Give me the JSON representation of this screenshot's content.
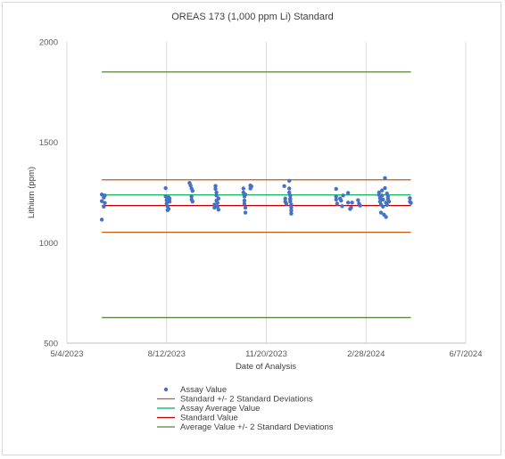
{
  "chart_data": {
    "type": "scatter",
    "title": "OREAS 173 (1,000 ppm Li) Standard",
    "xlabel": "Date of Analysis",
    "ylabel": "Lithium (ppm)",
    "ylim": [
      500,
      2000
    ],
    "yticks": [
      500,
      1000,
      1500,
      2000
    ],
    "xlim": [
      "2023-05-04",
      "2024-06-07"
    ],
    "xticks": [
      {
        "date": "2023-05-04",
        "label": "5/4/2023"
      },
      {
        "date": "2023-08-12",
        "label": "8/12/2023"
      },
      {
        "date": "2023-11-20",
        "label": "11/20/2023"
      },
      {
        "date": "2024-02-28",
        "label": "2/28/2024"
      },
      {
        "date": "2024-06-07",
        "label": "6/7/2024"
      }
    ],
    "grid": {
      "vertical": true,
      "horizontal": false
    },
    "legend_position": "bottom",
    "reference_lines": [
      {
        "name": "Standard +/- 2 Standard Deviations",
        "color": "#c55a11",
        "values": [
          1313,
          1052
        ],
        "x_range": [
          "2023-06-08",
          "2024-04-13"
        ]
      },
      {
        "name": "Assay Average Value",
        "color": "#00b050",
        "values": [
          1238
        ],
        "x_range": [
          "2023-06-08",
          "2024-04-13"
        ]
      },
      {
        "name": "Standard Value",
        "color": "#c00000",
        "values": [
          1185
        ],
        "x_range": [
          "2023-06-08",
          "2024-04-13"
        ]
      },
      {
        "name": "Average Value +/- 2 Standard Deviations",
        "color": "#548235",
        "values": [
          1850,
          627
        ],
        "x_range": [
          "2023-06-08",
          "2024-04-13"
        ]
      }
    ],
    "series": [
      {
        "name": "Assay Value",
        "color": "#4472c4",
        "points": [
          {
            "x": "2023-06-08",
            "y": 1115
          },
          {
            "x": "2023-06-08",
            "y": 1207
          },
          {
            "x": "2023-06-08",
            "y": 1240
          },
          {
            "x": "2023-06-10",
            "y": 1180
          },
          {
            "x": "2023-06-10",
            "y": 1225
          },
          {
            "x": "2023-06-11",
            "y": 1235
          },
          {
            "x": "2023-06-11",
            "y": 1198
          },
          {
            "x": "2023-08-11",
            "y": 1272
          },
          {
            "x": "2023-08-11",
            "y": 1230
          },
          {
            "x": "2023-08-12",
            "y": 1212
          },
          {
            "x": "2023-08-12",
            "y": 1195
          },
          {
            "x": "2023-08-13",
            "y": 1180
          },
          {
            "x": "2023-08-13",
            "y": 1162
          },
          {
            "x": "2023-08-14",
            "y": 1168
          },
          {
            "x": "2023-08-14",
            "y": 1225
          },
          {
            "x": "2023-08-15",
            "y": 1220
          },
          {
            "x": "2023-08-15",
            "y": 1205
          },
          {
            "x": "2023-09-04",
            "y": 1298
          },
          {
            "x": "2023-09-05",
            "y": 1285
          },
          {
            "x": "2023-09-06",
            "y": 1270
          },
          {
            "x": "2023-09-06",
            "y": 1230
          },
          {
            "x": "2023-09-06",
            "y": 1215
          },
          {
            "x": "2023-09-07",
            "y": 1205
          },
          {
            "x": "2023-09-07",
            "y": 1258
          },
          {
            "x": "2023-09-30",
            "y": 1283
          },
          {
            "x": "2023-09-30",
            "y": 1268
          },
          {
            "x": "2023-10-01",
            "y": 1250
          },
          {
            "x": "2023-10-01",
            "y": 1235
          },
          {
            "x": "2023-10-01",
            "y": 1210
          },
          {
            "x": "2023-10-02",
            "y": 1198
          },
          {
            "x": "2023-10-02",
            "y": 1180
          },
          {
            "x": "2023-10-03",
            "y": 1165
          },
          {
            "x": "2023-10-03",
            "y": 1220
          },
          {
            "x": "2023-09-29",
            "y": 1190
          },
          {
            "x": "2023-09-29",
            "y": 1175
          },
          {
            "x": "2023-10-28",
            "y": 1270
          },
          {
            "x": "2023-10-28",
            "y": 1250
          },
          {
            "x": "2023-10-29",
            "y": 1230
          },
          {
            "x": "2023-10-29",
            "y": 1210
          },
          {
            "x": "2023-10-29",
            "y": 1195
          },
          {
            "x": "2023-10-30",
            "y": 1175
          },
          {
            "x": "2023-10-30",
            "y": 1150
          },
          {
            "x": "2023-10-30",
            "y": 1240
          },
          {
            "x": "2023-11-04",
            "y": 1285
          },
          {
            "x": "2023-11-04",
            "y": 1270
          },
          {
            "x": "2023-11-05",
            "y": 1280
          },
          {
            "x": "2023-12-08",
            "y": 1282
          },
          {
            "x": "2023-12-09",
            "y": 1220
          },
          {
            "x": "2023-12-09",
            "y": 1205
          },
          {
            "x": "2023-12-10",
            "y": 1195
          },
          {
            "x": "2023-12-13",
            "y": 1308
          },
          {
            "x": "2023-12-13",
            "y": 1270
          },
          {
            "x": "2023-12-13",
            "y": 1250
          },
          {
            "x": "2023-12-14",
            "y": 1235
          },
          {
            "x": "2023-12-14",
            "y": 1220
          },
          {
            "x": "2023-12-14",
            "y": 1205
          },
          {
            "x": "2023-12-15",
            "y": 1190
          },
          {
            "x": "2023-12-15",
            "y": 1175
          },
          {
            "x": "2023-12-15",
            "y": 1160
          },
          {
            "x": "2023-12-15",
            "y": 1145
          },
          {
            "x": "2023-12-14",
            "y": 1215
          },
          {
            "x": "2024-01-29",
            "y": 1268
          },
          {
            "x": "2024-01-29",
            "y": 1230
          },
          {
            "x": "2024-01-29",
            "y": 1215
          },
          {
            "x": "2024-01-30",
            "y": 1195
          },
          {
            "x": "2024-02-02",
            "y": 1220
          },
          {
            "x": "2024-02-03",
            "y": 1210
          },
          {
            "x": "2024-02-04",
            "y": 1182
          },
          {
            "x": "2024-02-05",
            "y": 1235
          },
          {
            "x": "2024-02-10",
            "y": 1248
          },
          {
            "x": "2024-02-10",
            "y": 1200
          },
          {
            "x": "2024-02-12",
            "y": 1168
          },
          {
            "x": "2024-02-13",
            "y": 1175
          },
          {
            "x": "2024-02-14",
            "y": 1200
          },
          {
            "x": "2024-02-20",
            "y": 1212
          },
          {
            "x": "2024-02-21",
            "y": 1195
          },
          {
            "x": "2024-02-22",
            "y": 1185
          },
          {
            "x": "2024-03-12",
            "y": 1250
          },
          {
            "x": "2024-03-12",
            "y": 1238
          },
          {
            "x": "2024-03-13",
            "y": 1222
          },
          {
            "x": "2024-03-13",
            "y": 1205
          },
          {
            "x": "2024-03-14",
            "y": 1190
          },
          {
            "x": "2024-03-14",
            "y": 1150
          },
          {
            "x": "2024-03-15",
            "y": 1260
          },
          {
            "x": "2024-03-15",
            "y": 1235
          },
          {
            "x": "2024-03-16",
            "y": 1215
          },
          {
            "x": "2024-03-16",
            "y": 1180
          },
          {
            "x": "2024-03-17",
            "y": 1140
          },
          {
            "x": "2024-03-18",
            "y": 1322
          },
          {
            "x": "2024-03-18",
            "y": 1272
          },
          {
            "x": "2024-03-19",
            "y": 1128
          },
          {
            "x": "2024-03-19",
            "y": 1200
          },
          {
            "x": "2024-03-20",
            "y": 1245
          },
          {
            "x": "2024-03-20",
            "y": 1188
          },
          {
            "x": "2024-03-21",
            "y": 1218
          },
          {
            "x": "2024-03-21",
            "y": 1230
          },
          {
            "x": "2024-03-22",
            "y": 1205
          },
          {
            "x": "2024-04-12",
            "y": 1222
          },
          {
            "x": "2024-04-12",
            "y": 1205
          },
          {
            "x": "2024-04-13",
            "y": 1198
          }
        ]
      }
    ]
  },
  "legend": [
    {
      "label": "Assay Value",
      "kind": "marker",
      "color": "#4472c4"
    },
    {
      "label": "Standard +/- 2 Standard Deviations",
      "kind": "line",
      "color": "#c55a11"
    },
    {
      "label": "Assay Average Value",
      "kind": "line",
      "color": "#00b050"
    },
    {
      "label": "Standard Value",
      "kind": "line",
      "color": "#c00000"
    },
    {
      "label": "Average Value +/- 2 Standard Deviations",
      "kind": "line",
      "color": "#548235"
    }
  ]
}
